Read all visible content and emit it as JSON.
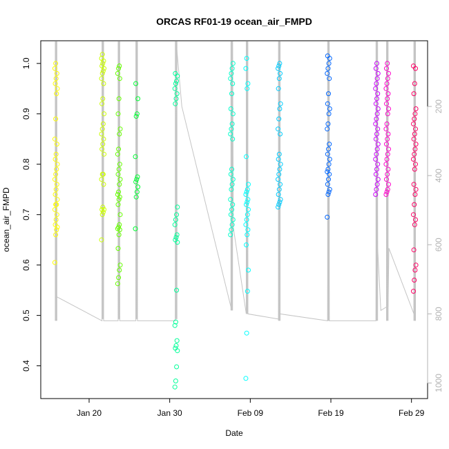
{
  "chart_data": {
    "type": "scatter",
    "title": "ORCAS RF01-19 ocean_air_FMPD",
    "xlabel": "Date",
    "ylabel": "ocean_air_FMPD",
    "xlim": [
      "2016-01-14",
      "2016-03-02"
    ],
    "ylim": [
      0.335,
      1.045
    ],
    "y2lim": [
      1045,
      10
    ],
    "y2_direction": "reversed",
    "x_ticks": [
      {
        "date": "2016-01-20",
        "label": "Jan 20"
      },
      {
        "date": "2016-01-30",
        "label": "Jan 30"
      },
      {
        "date": "2016-02-09",
        "label": "Feb 09"
      },
      {
        "date": "2016-02-19",
        "label": "Feb 19"
      },
      {
        "date": "2016-02-29",
        "label": "Feb 29"
      }
    ],
    "y_ticks": [
      {
        "value": 0.4,
        "label": "0.4"
      },
      {
        "value": 0.5,
        "label": "0.5"
      },
      {
        "value": 0.6,
        "label": "0.6"
      },
      {
        "value": 0.7,
        "label": "0.7"
      },
      {
        "value": 0.8,
        "label": "0.8"
      },
      {
        "value": 0.9,
        "label": "0.9"
      },
      {
        "value": 1.0,
        "label": "1.0"
      }
    ],
    "y2_ticks": [
      {
        "value": 200,
        "label": "200"
      },
      {
        "value": 400,
        "label": "400"
      },
      {
        "value": 600,
        "label": "600"
      },
      {
        "value": 800,
        "label": "800"
      },
      {
        "value": 1000,
        "label": "1000"
      }
    ],
    "grid": false,
    "flights": [
      {
        "date": "2016-01-15.9",
        "color": "#ffff00",
        "ptop": 12,
        "pbot": 820,
        "values": [
          0.605,
          0.66,
          0.67,
          0.675,
          0.68,
          0.69,
          0.7,
          0.71,
          0.72,
          0.72,
          0.73,
          0.74,
          0.75,
          0.76,
          0.77,
          0.78,
          0.79,
          0.8,
          0.81,
          0.82,
          0.84,
          0.85,
          0.89,
          0.94,
          0.95,
          0.96,
          0.97,
          0.98,
          0.99,
          1.0
        ]
      },
      {
        "date": "2016-01-21.7",
        "color": "#ccff00",
        "ptop": 12,
        "pbot": 815,
        "values": [
          0.65,
          0.7,
          0.705,
          0.71,
          0.71,
          0.715,
          0.76,
          0.77,
          0.78,
          0.78,
          0.82,
          0.83,
          0.84,
          0.85,
          0.86,
          0.87,
          0.88,
          0.9,
          0.92,
          0.93,
          0.96,
          0.97,
          0.98,
          0.985,
          0.99,
          0.995,
          1.0,
          1.005,
          1.01,
          1.018
        ]
      },
      {
        "date": "2016-01-23.7",
        "color": "#66ff00",
        "ptop": 12,
        "pbot": 815,
        "values": [
          0.563,
          0.575,
          0.59,
          0.6,
          0.633,
          0.66,
          0.67,
          0.672,
          0.675,
          0.68,
          0.7,
          0.72,
          0.73,
          0.735,
          0.74,
          0.745,
          0.76,
          0.77,
          0.78,
          0.79,
          0.8,
          0.82,
          0.83,
          0.86,
          0.87,
          0.9,
          0.93,
          0.97,
          0.98,
          0.99,
          0.995
        ]
      },
      {
        "date": "2016-01-25.9",
        "color": "#00ff33",
        "ptop": 12,
        "pbot": 815,
        "values": [
          0.672,
          0.735,
          0.745,
          0.755,
          0.765,
          0.77,
          0.775,
          0.815,
          0.895,
          0.9,
          0.93,
          0.96
        ]
      },
      {
        "date": "2016-01-30.8",
        "color": "#00ff99",
        "ptop": 12,
        "pbot": 815,
        "values": [
          0.358,
          0.37,
          0.398,
          0.43,
          0.435,
          0.44,
          0.45,
          0.48,
          0.487,
          0.55,
          0.645,
          0.65,
          0.655,
          0.66,
          0.68,
          0.69,
          0.7,
          0.715,
          0.92,
          0.93,
          0.94,
          0.95,
          0.96,
          0.965,
          0.975,
          0.98
        ]
      },
      {
        "date": "2016-02-06.7",
        "color": "#00ffcc",
        "ptop": 12,
        "pbot": 790,
        "values": [
          0.66,
          0.67,
          0.68,
          0.69,
          0.7,
          0.71,
          0.72,
          0.73,
          0.75,
          0.76,
          0.77,
          0.78,
          0.79,
          0.85,
          0.86,
          0.87,
          0.88,
          0.9,
          0.91,
          0.94,
          0.96,
          0.97,
          0.98,
          0.99,
          1.0
        ]
      },
      {
        "date": "2016-02-08.6",
        "color": "#00ffff",
        "ptop": 12,
        "pbot": 800,
        "values": [
          0.375,
          0.465,
          0.548,
          0.59,
          0.64,
          0.66,
          0.67,
          0.68,
          0.69,
          0.7,
          0.71,
          0.72,
          0.725,
          0.73,
          0.74,
          0.745,
          0.75,
          0.76,
          0.815,
          0.95,
          0.96,
          0.99,
          1.01
        ]
      },
      {
        "date": "2016-02-12.6",
        "color": "#00ccff",
        "ptop": 12,
        "pbot": 820,
        "values": [
          0.715,
          0.72,
          0.725,
          0.73,
          0.74,
          0.75,
          0.76,
          0.77,
          0.78,
          0.79,
          0.8,
          0.81,
          0.82,
          0.86,
          0.87,
          0.89,
          0.91,
          0.92,
          0.95,
          0.97,
          0.98,
          0.99,
          0.995,
          1.0
        ]
      },
      {
        "date": "2016-02-18.7",
        "color": "#0066ff",
        "ptop": 12,
        "pbot": 820,
        "values": [
          0.695,
          0.74,
          0.745,
          0.75,
          0.76,
          0.77,
          0.78,
          0.785,
          0.79,
          0.8,
          0.81,
          0.82,
          0.83,
          0.84,
          0.87,
          0.88,
          0.9,
          0.91,
          0.92,
          0.94,
          0.97,
          0.98,
          0.99,
          1.0,
          1.01,
          1.015
        ]
      },
      {
        "date": "2016-02-24.7",
        "color": "#cc00ff",
        "ptop": 12,
        "pbot": 820,
        "values": [
          0.74,
          0.75,
          0.76,
          0.77,
          0.78,
          0.79,
          0.8,
          0.81,
          0.82,
          0.83,
          0.84,
          0.85,
          0.86,
          0.87,
          0.88,
          0.89,
          0.9,
          0.91,
          0.92,
          0.93,
          0.94,
          0.95,
          0.96,
          0.97,
          0.98,
          0.99,
          1.0
        ]
      },
      {
        "date": "2016-02-26.0",
        "color": "#ff00cc",
        "ptop": 12,
        "pbot": 820,
        "values": [
          0.74,
          0.745,
          0.75,
          0.76,
          0.77,
          0.78,
          0.79,
          0.8,
          0.81,
          0.82,
          0.83,
          0.84,
          0.85,
          0.86,
          0.87,
          0.88,
          0.9,
          0.91,
          0.92,
          0.93,
          0.94,
          0.95,
          0.96,
          0.97,
          0.98,
          0.99,
          1.0
        ]
      },
      {
        "date": "2016-02-29.4",
        "color": "#ff0066",
        "ptop": 12,
        "pbot": 820,
        "values": [
          0.548,
          0.57,
          0.59,
          0.6,
          0.63,
          0.68,
          0.69,
          0.7,
          0.72,
          0.74,
          0.75,
          0.76,
          0.79,
          0.8,
          0.81,
          0.82,
          0.83,
          0.84,
          0.85,
          0.86,
          0.87,
          0.88,
          0.89,
          0.9,
          0.91,
          0.94,
          0.96,
          0.99,
          0.995
        ]
      }
    ],
    "pressure_track": [
      {
        "date": "2016-01-15.9",
        "p": 820
      },
      {
        "date": "2016-01-15.9",
        "p": 12
      },
      {
        "date": "2016-01-15.95",
        "p": 750
      },
      {
        "date": "2016-01-21.6",
        "p": 820
      },
      {
        "date": "2016-01-21.7",
        "p": 12
      },
      {
        "date": "2016-01-21.8",
        "p": 820
      },
      {
        "date": "2016-01-23.6",
        "p": 820
      },
      {
        "date": "2016-01-23.7",
        "p": 12
      },
      {
        "date": "2016-01-23.8",
        "p": 820
      },
      {
        "date": "2016-01-25.8",
        "p": 820
      },
      {
        "date": "2016-01-25.9",
        "p": 12
      },
      {
        "date": "2016-01-26.0",
        "p": 820
      },
      {
        "date": "2016-01-30.7",
        "p": 820
      },
      {
        "date": "2016-01-30.8",
        "p": 12
      },
      {
        "date": "2016-01-31.5",
        "p": 200
      },
      {
        "date": "2016-02-06.7",
        "p": 790
      },
      {
        "date": "2016-02-06.8",
        "p": 12
      },
      {
        "date": "2016-02-06.9",
        "p": 550
      },
      {
        "date": "2016-02-08.5",
        "p": 800
      },
      {
        "date": "2016-02-08.6",
        "p": 12
      },
      {
        "date": "2016-02-08.7",
        "p": 800
      },
      {
        "date": "2016-02-12.5",
        "p": 815
      },
      {
        "date": "2016-02-12.6",
        "p": 12
      },
      {
        "date": "2016-02-12.7",
        "p": 800
      },
      {
        "date": "2016-02-18.6",
        "p": 820
      },
      {
        "date": "2016-02-18.7",
        "p": 12
      },
      {
        "date": "2016-02-18.8",
        "p": 820
      },
      {
        "date": "2016-02-24.6",
        "p": 820
      },
      {
        "date": "2016-02-24.7",
        "p": 12
      },
      {
        "date": "2016-02-24.8",
        "p": 610
      },
      {
        "date": "2016-02-25.2",
        "p": 790
      },
      {
        "date": "2016-02-25.9",
        "p": 780
      },
      {
        "date": "2016-02-26.0",
        "p": 12
      },
      {
        "date": "2016-02-26.1",
        "p": 780
      },
      {
        "date": "2016-02-26.2",
        "p": 610
      },
      {
        "date": "2016-02-29.3",
        "p": 800
      },
      {
        "date": "2016-02-29.4",
        "p": 12
      },
      {
        "date": "2016-02-29.5",
        "p": 800
      }
    ]
  }
}
